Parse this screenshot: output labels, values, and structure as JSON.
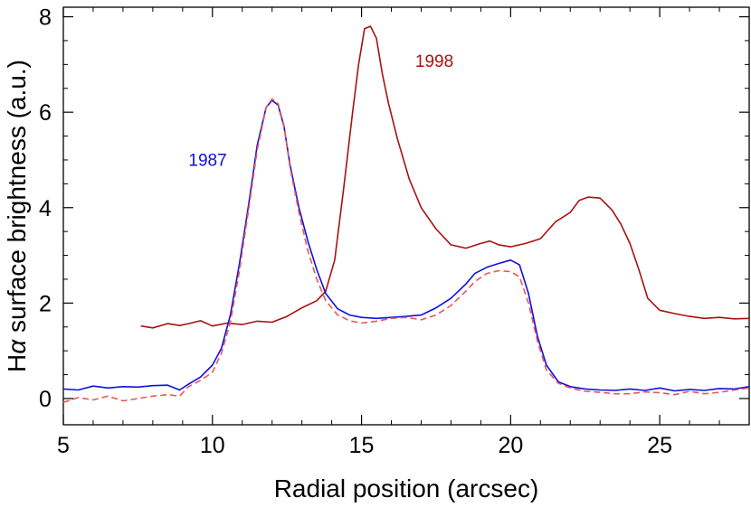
{
  "chart_data": {
    "type": "line",
    "title": "",
    "xlabel": "Radial position (arcsec)",
    "ylabel_prefix": "H",
    "ylabel_greek": "α",
    "ylabel_rest": " surface brightness (a.u.)",
    "xlim": [
      5,
      28
    ],
    "ylim": [
      -0.55,
      8.2
    ],
    "xticks": [
      5,
      10,
      15,
      20,
      25
    ],
    "yticks": [
      0,
      2,
      4,
      6,
      8
    ],
    "xtick_labels": [
      "5",
      "10",
      "15",
      "20",
      "25"
    ],
    "ytick_labels": [
      "0",
      "2",
      "4",
      "6",
      "8"
    ],
    "grid": false,
    "series": [
      {
        "name": "1998",
        "color": "#aa1111",
        "dash": "solid",
        "label_at": [
          16.8,
          6.95
        ],
        "x": [
          7.6,
          8.0,
          8.5,
          8.9,
          9.2,
          9.6,
          10.0,
          10.5,
          11.0,
          11.5,
          12.0,
          12.5,
          13.0,
          13.5,
          13.8,
          14.1,
          14.4,
          14.7,
          14.9,
          15.1,
          15.3,
          15.5,
          15.7,
          15.9,
          16.2,
          16.6,
          17.0,
          17.5,
          18.0,
          18.5,
          19.0,
          19.3,
          19.6,
          20.0,
          20.5,
          21.0,
          21.5,
          22.0,
          22.3,
          22.6,
          23.0,
          23.4,
          23.7,
          24.0,
          24.3,
          24.6,
          25.0,
          25.5,
          26.0,
          26.5,
          27.0,
          27.5,
          28.0
        ],
        "y": [
          1.52,
          1.48,
          1.57,
          1.53,
          1.57,
          1.63,
          1.52,
          1.58,
          1.55,
          1.62,
          1.6,
          1.72,
          1.9,
          2.05,
          2.25,
          2.9,
          4.4,
          6.0,
          7.0,
          7.75,
          7.8,
          7.55,
          6.8,
          6.2,
          5.45,
          4.6,
          4.0,
          3.55,
          3.22,
          3.15,
          3.25,
          3.3,
          3.22,
          3.18,
          3.25,
          3.35,
          3.7,
          3.9,
          4.15,
          4.22,
          4.2,
          3.95,
          3.65,
          3.25,
          2.7,
          2.1,
          1.85,
          1.78,
          1.72,
          1.68,
          1.7,
          1.67,
          1.68
        ]
      },
      {
        "name": "1987",
        "color": "#1010dd",
        "dash": "solid",
        "label_at": [
          9.2,
          4.88
        ],
        "x": [
          5.0,
          5.5,
          6.0,
          6.5,
          7.0,
          7.5,
          8.0,
          8.5,
          8.9,
          9.2,
          9.6,
          10.0,
          10.3,
          10.6,
          10.9,
          11.2,
          11.5,
          11.8,
          12.0,
          12.2,
          12.4,
          12.6,
          12.9,
          13.2,
          13.5,
          13.8,
          14.2,
          14.6,
          15.0,
          15.5,
          16.0,
          16.5,
          17.0,
          17.5,
          18.0,
          18.5,
          18.8,
          19.2,
          19.6,
          20.0,
          20.3,
          20.6,
          20.9,
          21.2,
          21.6,
          22.0,
          22.5,
          23.0,
          23.5,
          24.0,
          24.5,
          25.0,
          25.5,
          26.0,
          26.5,
          27.0,
          27.5,
          28.0
        ],
        "y": [
          0.2,
          0.18,
          0.26,
          0.22,
          0.25,
          0.24,
          0.27,
          0.28,
          0.18,
          0.3,
          0.45,
          0.7,
          1.05,
          1.75,
          2.8,
          4.0,
          5.3,
          6.1,
          6.25,
          6.15,
          5.7,
          4.9,
          4.0,
          3.3,
          2.7,
          2.2,
          1.88,
          1.75,
          1.7,
          1.68,
          1.7,
          1.72,
          1.75,
          1.9,
          2.1,
          2.4,
          2.62,
          2.75,
          2.83,
          2.9,
          2.8,
          2.2,
          1.3,
          0.7,
          0.35,
          0.25,
          0.2,
          0.18,
          0.17,
          0.2,
          0.17,
          0.22,
          0.16,
          0.19,
          0.17,
          0.21,
          0.2,
          0.25
        ]
      },
      {
        "name": "",
        "color": "#ee5555",
        "dash": "dashed",
        "x": [
          5.0,
          5.5,
          6.0,
          6.5,
          7.0,
          7.5,
          8.0,
          8.5,
          8.9,
          9.2,
          9.6,
          10.0,
          10.3,
          10.6,
          10.9,
          11.2,
          11.5,
          11.8,
          12.0,
          12.2,
          12.4,
          12.6,
          12.9,
          13.2,
          13.5,
          13.8,
          14.2,
          14.6,
          15.0,
          15.5,
          16.0,
          16.5,
          17.0,
          17.5,
          18.0,
          18.5,
          18.8,
          19.2,
          19.6,
          20.0,
          20.3,
          20.6,
          20.9,
          21.2,
          21.6,
          22.0,
          22.5,
          23.0,
          23.5,
          24.0,
          24.5,
          25.0,
          25.5,
          26.0,
          26.5,
          27.0,
          27.5,
          28.0
        ],
        "y": [
          -0.08,
          0.02,
          -0.03,
          0.05,
          -0.05,
          0.0,
          0.05,
          0.08,
          0.05,
          0.25,
          0.38,
          0.55,
          0.95,
          1.6,
          2.65,
          3.9,
          5.2,
          6.1,
          6.28,
          6.18,
          5.72,
          4.85,
          3.9,
          3.1,
          2.5,
          2.05,
          1.75,
          1.63,
          1.58,
          1.62,
          1.68,
          1.7,
          1.65,
          1.75,
          1.95,
          2.25,
          2.45,
          2.62,
          2.68,
          2.66,
          2.55,
          2.0,
          1.2,
          0.6,
          0.32,
          0.22,
          0.15,
          0.13,
          0.1,
          0.1,
          0.14,
          0.12,
          0.08,
          0.15,
          0.1,
          0.13,
          0.18,
          0.22
        ]
      }
    ]
  }
}
